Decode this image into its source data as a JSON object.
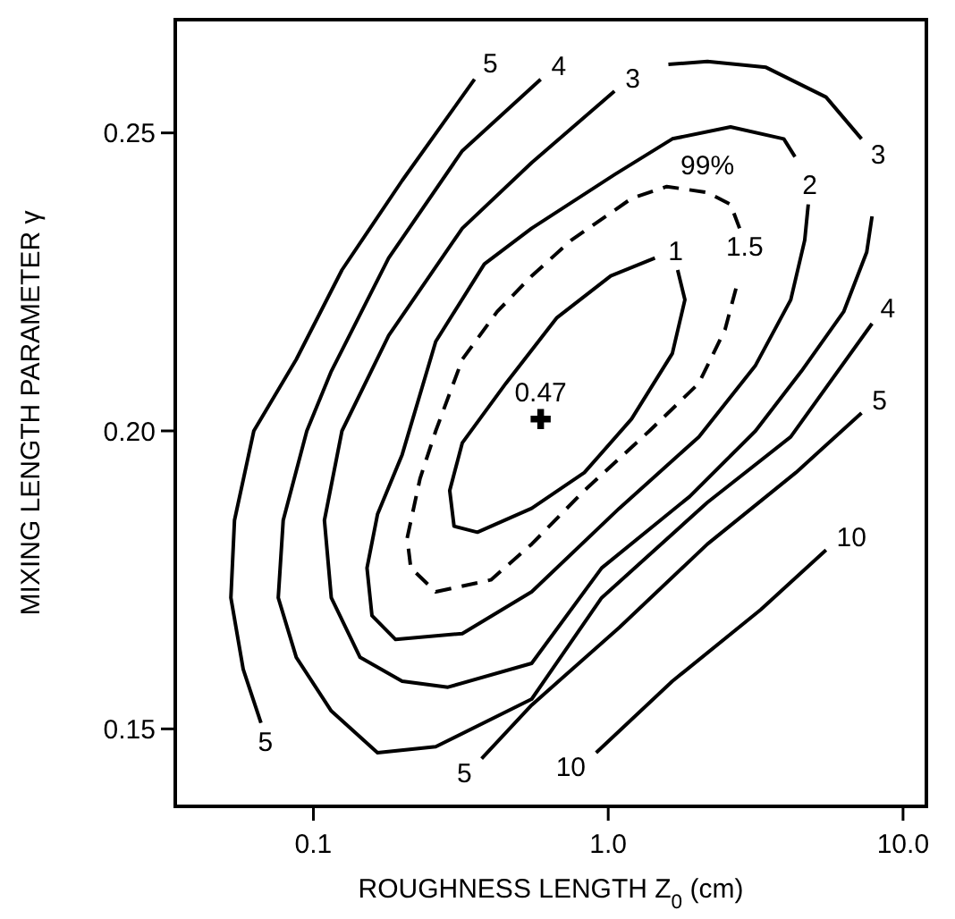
{
  "chart_data": {
    "type": "line",
    "xlabel": "ROUGHNESS LENGTH Z$_{0}$ (cm)",
    "ylabel": "MIXING LENGTH PARAMETER γ",
    "log": "x",
    "xlim": [
      0.034,
      12
    ],
    "xticks": [
      {
        "value": 0.1,
        "label": "0.1"
      },
      {
        "value": 1,
        "label": "1.0"
      },
      {
        "value": 10,
        "label": "10.0"
      }
    ],
    "ylim": [
      0.137,
      0.269
    ],
    "yticks": [
      0.15,
      {
        "value": 0.2,
        "label": "0.20"
      },
      0.25
    ],
    "series": [
      {
        "color": "#000000",
        "line_style": "solid",
        "x": [
          1.72,
          1.82,
          1.65,
          1.2,
          0.83,
          0.55,
          0.36,
          0.3,
          0.29,
          0.32,
          0.45,
          0.67,
          1.02,
          1.44
        ],
        "values": [
          0.227,
          0.222,
          0.213,
          0.202,
          0.193,
          0.187,
          0.183,
          0.184,
          0.19,
          0.198,
          0.208,
          0.219,
          0.226,
          0.229
        ]
      },
      {
        "color": "#000000",
        "line_style": "dashed",
        "x": [
          2.79,
          2.6,
          2.17,
          1.58,
          1.2,
          0.75,
          0.55,
          0.42,
          0.32,
          0.26,
          0.23,
          0.208,
          0.214,
          0.26,
          0.4,
          0.55,
          0.83,
          1.38,
          2.03,
          2.49,
          2.75
        ],
        "values": [
          0.234,
          0.238,
          0.24,
          0.241,
          0.239,
          0.232,
          0.226,
          0.22,
          0.212,
          0.2,
          0.192,
          0.182,
          0.177,
          0.173,
          0.175,
          0.181,
          0.19,
          0.2,
          0.208,
          0.217,
          0.225
        ]
      },
      {
        "color": "#000000",
        "line_style": "solid",
        "x": [
          4.3,
          3.94,
          2.6,
          1.65,
          1.05,
          0.55,
          0.38,
          0.26,
          0.2,
          0.165,
          0.152,
          0.158,
          0.19,
          0.32,
          0.55,
          1.09,
          2.03,
          3.16,
          4.16,
          4.64,
          4.77
        ],
        "values": [
          0.246,
          0.249,
          0.251,
          0.249,
          0.243,
          0.234,
          0.228,
          0.215,
          0.196,
          0.186,
          0.177,
          0.169,
          0.165,
          0.166,
          0.173,
          0.187,
          0.199,
          0.211,
          0.222,
          0.232,
          0.238
        ]
      },
      {
        "color": "#000000",
        "line_style": "solid",
        "x": [
          1.6,
          2.17,
          3.43,
          5.48,
          7.23
        ],
        "values": [
          0.2615,
          0.262,
          0.261,
          0.256,
          0.249
        ]
      },
      {
        "color": "#000000",
        "line_style": "solid",
        "x": [
          7.85,
          7.53,
          6.29,
          4.52,
          3.16,
          1.89,
          0.95,
          0.55,
          0.286,
          0.2,
          0.144,
          0.115,
          0.109,
          0.125,
          0.18,
          0.32,
          0.55,
          1.05
        ],
        "values": [
          0.236,
          0.23,
          0.22,
          0.21,
          0.2,
          0.189,
          0.177,
          0.161,
          0.157,
          0.158,
          0.162,
          0.172,
          0.185,
          0.2,
          0.216,
          0.234,
          0.245,
          0.257
        ]
      },
      {
        "color": "#000000",
        "line_style": "solid",
        "x": [
          0.59,
          0.32,
          0.18,
          0.115,
          0.095,
          0.079,
          0.076,
          0.0875,
          0.115,
          0.165,
          0.26,
          0.55,
          0.95,
          2.17,
          4.16,
          7.85
        ],
        "values": [
          0.259,
          0.247,
          0.229,
          0.21,
          0.2,
          0.185,
          0.172,
          0.162,
          0.153,
          0.146,
          0.147,
          0.155,
          0.172,
          0.188,
          0.199,
          0.218
        ]
      },
      {
        "color": "#000000",
        "line_style": "solid",
        "x": [
          0.352,
          0.2,
          0.125,
          0.0875,
          0.0628,
          0.054,
          0.0525,
          0.0578,
          0.0664
        ],
        "values": [
          0.259,
          0.242,
          0.227,
          0.212,
          0.2,
          0.185,
          0.172,
          0.16,
          0.151
        ]
      },
      {
        "color": "#000000",
        "line_style": "solid",
        "x": [
          0.372,
          0.55,
          1.09,
          2.17,
          4.33,
          7.23
        ],
        "values": [
          0.145,
          0.154,
          0.167,
          0.181,
          0.193,
          0.203
        ]
      },
      {
        "color": "#000000",
        "line_style": "solid",
        "x": [
          0.91,
          1.65,
          3.29,
          5.48
        ],
        "values": [
          0.146,
          0.158,
          0.17,
          0.18
        ]
      },
      {
        "type": "scatter",
        "marker": "cross",
        "color": "#000000",
        "x": [
          0.59
        ],
        "values": [
          0.202
        ]
      }
    ],
    "annotations": [
      {
        "text": "5",
        "x": 0.352,
        "y": 0.259
      },
      {
        "text": "4",
        "x": 0.59,
        "y": 0.259
      },
      {
        "text": "3",
        "x": 1.05,
        "y": 0.257
      },
      {
        "text": "99%",
        "x": 2.17,
        "y": 0.24
      },
      {
        "text": "1.5",
        "x": 2.79,
        "y": 0.234
      },
      {
        "text": "1",
        "x": 1.44,
        "y": 0.229
      },
      {
        "text": "2",
        "x": 4.77,
        "y": 0.238
      },
      {
        "text": "3",
        "x": 7.23,
        "y": 0.249
      },
      {
        "text": "4",
        "x": 7.85,
        "y": 0.218
      },
      {
        "text": "5",
        "x": 7.23,
        "y": 0.203
      },
      {
        "text": "10",
        "x": 5.48,
        "y": 0.18
      },
      {
        "text": "10",
        "x": 0.91,
        "y": 0.146
      },
      {
        "text": "5",
        "x": 0.372,
        "y": 0.145
      },
      {
        "text": "5",
        "x": 0.0664,
        "y": 0.151
      },
      {
        "text": "0.47",
        "x": 0.59,
        "y": 0.202
      }
    ]
  }
}
